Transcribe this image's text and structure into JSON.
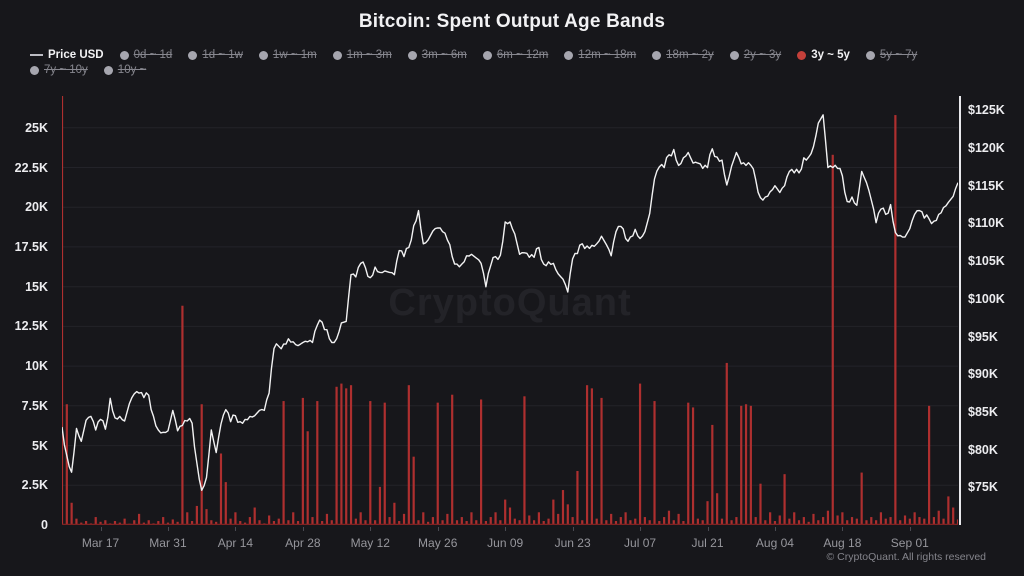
{
  "title": "Bitcoin: Spent Output Age Bands",
  "watermark": "CryptoQuant",
  "footer": "© CryptoQuant. All rights reserved",
  "colors": {
    "background": "#17171b",
    "bar": "#ae2f2f",
    "bar_baseline": "#7e2222",
    "price_line": "#f2f2f3",
    "grid": "#232329",
    "legend_active_dot": "#c4403a",
    "legend_disabled_text": "#87878f",
    "axis_text": "#ececef",
    "muted_text": "#96969c"
  },
  "legend": {
    "rows": [
      [
        {
          "label": "Price USD",
          "marker": "line",
          "state": "active"
        },
        {
          "label": "0d ~ 1d",
          "marker": "dot",
          "state": "disabled"
        },
        {
          "label": "1d ~ 1w",
          "marker": "dot",
          "state": "disabled"
        },
        {
          "label": "1w ~ 1m",
          "marker": "dot",
          "state": "disabled"
        },
        {
          "label": "1m ~ 3m",
          "marker": "dot",
          "state": "disabled"
        },
        {
          "label": "3m ~ 6m",
          "marker": "dot",
          "state": "disabled"
        },
        {
          "label": "6m ~ 12m",
          "marker": "dot",
          "state": "disabled"
        },
        {
          "label": "12m ~ 18m",
          "marker": "dot",
          "state": "disabled"
        },
        {
          "label": "18m ~ 2y",
          "marker": "dot",
          "state": "disabled"
        },
        {
          "label": "2y ~ 3y",
          "marker": "dot",
          "state": "disabled"
        },
        {
          "label": "3y ~ 5y",
          "marker": "dot",
          "state": "active"
        },
        {
          "label": "5y ~ 7y",
          "marker": "dot",
          "state": "disabled"
        }
      ],
      [
        {
          "label": "7y ~ 10y",
          "marker": "dot",
          "state": "disabled"
        },
        {
          "label": "10y ~",
          "marker": "dot",
          "state": "disabled"
        }
      ]
    ]
  },
  "chart_data": {
    "type": "mixed",
    "title": "Bitcoin: Spent Output Age Bands",
    "grid": "horizontal",
    "left_axis": {
      "ticks": [
        "0",
        "2.5K",
        "5K",
        "7.5K",
        "10K",
        "12.5K",
        "15K",
        "17.5K",
        "20K",
        "22.5K",
        "25K"
      ],
      "tick_values": [
        0,
        2.5,
        5,
        7.5,
        10,
        12.5,
        15,
        17.5,
        20,
        22.5,
        25
      ],
      "range": [
        0,
        27
      ],
      "unit": "K BTC (spent output value, 3y~5y band)"
    },
    "right_axis": {
      "ticks": [
        "$75K",
        "$80K",
        "$85K",
        "$90K",
        "$95K",
        "$100K",
        "$105K",
        "$110K",
        "$115K",
        "$120K",
        "$125K"
      ],
      "tick_values": [
        75,
        80,
        85,
        90,
        95,
        100,
        105,
        110,
        115,
        120,
        125
      ],
      "range": [
        70,
        126.9
      ],
      "unit": "USD thousands"
    },
    "x_axis": {
      "tick_labels": [
        "Mar 17",
        "Mar 31",
        "Apr 14",
        "Apr 28",
        "May 12",
        "May 26",
        "Jun 09",
        "Jun 23",
        "Jul 07",
        "Jul 21",
        "Aug 04",
        "Aug 18",
        "Sep 01"
      ],
      "tick_day_offsets": [
        8,
        22,
        36,
        50,
        64,
        78,
        92,
        106,
        120,
        134,
        148,
        162,
        176
      ],
      "total_days": 186
    },
    "series": [
      {
        "name": "Price USD",
        "type": "line",
        "axis": "right",
        "color": "#f2f2f3",
        "values": [
          83.0,
          79.2,
          77.0,
          82.8,
          81.1,
          83.9,
          84.4,
          82.6,
          84.0,
          82.7,
          86.8,
          84.2,
          84.4,
          83.8,
          86.1,
          87.4,
          87.5,
          86.9,
          87.2,
          84.4,
          82.6,
          82.3,
          82.5,
          85.2,
          82.5,
          83.2,
          83.8,
          83.5,
          78.2,
          74.6,
          76.3,
          82.6,
          79.6,
          83.4,
          85.3,
          83.7,
          84.5,
          83.7,
          84.0,
          84.4,
          84.5,
          85.2,
          85.2,
          87.5,
          93.4,
          93.7,
          94.0,
          94.7,
          94.3,
          93.8,
          94.2,
          94.3,
          94.2,
          96.5,
          96.9,
          95.9,
          94.2,
          94.7,
          96.8,
          97.0,
          103.2,
          102.9,
          104.7,
          104.1,
          102.8,
          104.2,
          103.5,
          103.7,
          103.5,
          103.2,
          106.4,
          105.6,
          106.8,
          109.7,
          111.7,
          107.3,
          107.8,
          109.0,
          109.4,
          108.9,
          107.8,
          105.6,
          104.6,
          104.6,
          105.7,
          105.9,
          105.4,
          104.7,
          101.6,
          104.4,
          105.6,
          105.8,
          110.2,
          110.2,
          108.6,
          105.9,
          106.1,
          105.5,
          105.5,
          106.8,
          104.6,
          104.9,
          104.7,
          103.3,
          102.6,
          100.9,
          105.3,
          106.0,
          107.3,
          107.0,
          107.1,
          107.3,
          108.3,
          107.2,
          105.7,
          108.9,
          109.6,
          108.0,
          108.2,
          109.2,
          108.0,
          108.9,
          111.3,
          115.9,
          117.5,
          117.4,
          119.1,
          119.8,
          117.7,
          118.7,
          119.4,
          118.0,
          118.0,
          117.3,
          117.4,
          119.9,
          118.8,
          118.4,
          115.1,
          117.6,
          119.4,
          117.9,
          117.7,
          117.7,
          115.8,
          113.4,
          113.5,
          114.2,
          115.0,
          114.1,
          115.0,
          116.9,
          116.7,
          116.7,
          118.7,
          118.8,
          120.2,
          123.3,
          124.4,
          117.4,
          117.4,
          117.3,
          116.3,
          112.9,
          113.5,
          112.4,
          116.9,
          115.4,
          113.1,
          110.1,
          111.9,
          111.2,
          112.5,
          108.8,
          108.4,
          108.2,
          109.3,
          111.2,
          111.7,
          110.7,
          110.6,
          110.3,
          111.2,
          112.1,
          112.8,
          113.6,
          115.4
        ]
      },
      {
        "name": "3y ~ 5y",
        "type": "bar",
        "axis": "left",
        "color": "#ae2f2f",
        "values": [
          27,
          7.6,
          1.4,
          0.4,
          0.15,
          0.25,
          0.1,
          0.5,
          0.2,
          0.3,
          0.1,
          0.25,
          0.15,
          0.4,
          0.08,
          0.3,
          0.7,
          0.15,
          0.3,
          0.1,
          0.25,
          0.5,
          0.15,
          0.35,
          0.2,
          13.8,
          0.8,
          0.25,
          1.2,
          7.6,
          1.0,
          0.3,
          0.2,
          4.5,
          2.7,
          0.4,
          0.8,
          0.25,
          0.15,
          0.5,
          1.1,
          0.3,
          0.1,
          0.6,
          0.25,
          0.4,
          7.8,
          0.3,
          0.8,
          0.25,
          8.0,
          5.9,
          0.5,
          7.8,
          0.25,
          0.7,
          0.3,
          8.7,
          8.9,
          8.6,
          8.8,
          0.4,
          0.8,
          0.3,
          7.8,
          0.3,
          2.4,
          7.7,
          0.5,
          1.4,
          0.25,
          0.7,
          8.8,
          4.3,
          0.3,
          0.8,
          0.2,
          0.5,
          7.7,
          0.3,
          0.7,
          8.2,
          0.3,
          0.5,
          0.25,
          0.8,
          0.3,
          7.9,
          0.25,
          0.5,
          0.8,
          0.3,
          1.6,
          1.1,
          0.4,
          0.3,
          8.1,
          0.6,
          0.3,
          0.8,
          0.25,
          0.4,
          1.6,
          0.7,
          2.2,
          1.3,
          0.5,
          3.4,
          0.3,
          8.8,
          8.6,
          0.4,
          8.0,
          0.3,
          0.7,
          0.25,
          0.5,
          0.8,
          0.3,
          0.4,
          8.9,
          0.5,
          0.3,
          7.8,
          0.25,
          0.5,
          0.9,
          0.3,
          0.7,
          0.25,
          7.7,
          7.4,
          0.4,
          0.3,
          1.5,
          6.3,
          2.0,
          0.4,
          10.2,
          0.3,
          0.5,
          7.5,
          7.6,
          7.5,
          0.5,
          2.6,
          0.3,
          0.8,
          0.25,
          0.6,
          3.2,
          0.4,
          0.8,
          0.3,
          0.5,
          0.2,
          0.7,
          0.3,
          0.5,
          0.9,
          23.3,
          0.6,
          0.8,
          0.3,
          0.5,
          0.4,
          3.3,
          0.3,
          0.5,
          0.3,
          0.8,
          0.4,
          0.5,
          25.8,
          0.3,
          0.6,
          0.4,
          0.8,
          0.5,
          0.4,
          7.5,
          0.5,
          0.9,
          0.4,
          1.8,
          1.1,
          0.35
        ]
      }
    ]
  }
}
